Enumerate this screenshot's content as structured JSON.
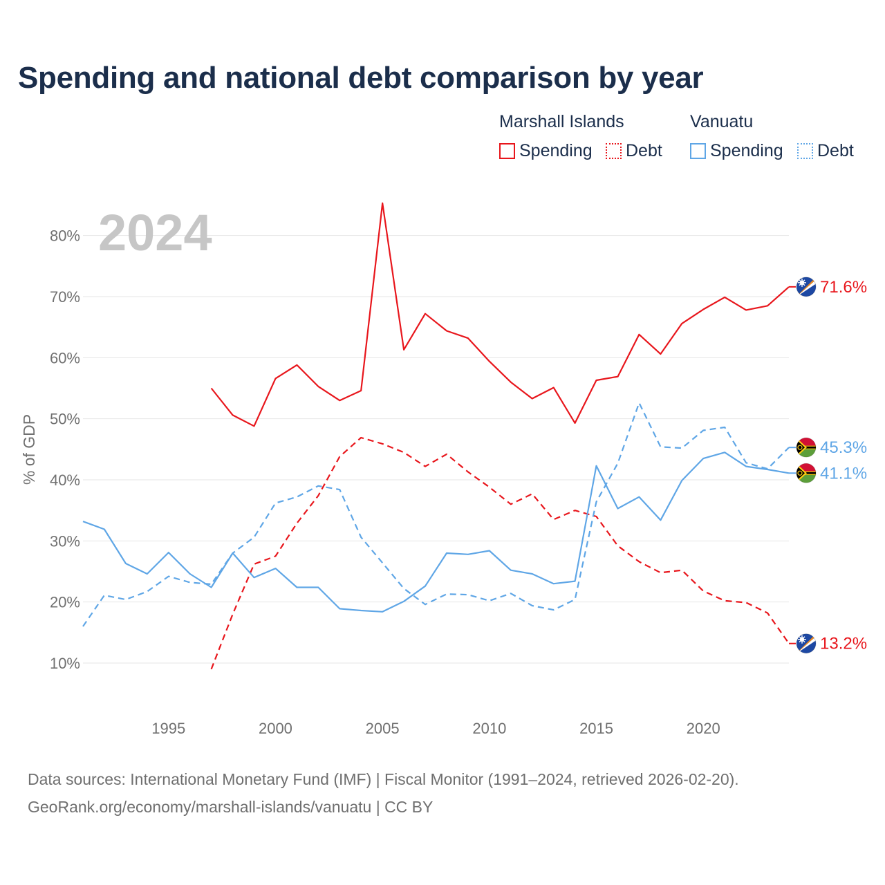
{
  "header": {
    "title": "Spending and national debt comparison by year"
  },
  "legend": {
    "groups": [
      {
        "name": "Marshall Islands",
        "color": "#e8161c",
        "items": [
          {
            "label": "Spending",
            "style": "solid"
          },
          {
            "label": "Debt",
            "style": "dotted"
          }
        ]
      },
      {
        "name": "Vanuatu",
        "color": "#5fa6e6",
        "items": [
          {
            "label": "Spending",
            "style": "solid"
          },
          {
            "label": "Debt",
            "style": "dotted"
          }
        ]
      }
    ]
  },
  "year_watermark": "2024",
  "footer": {
    "sources_line1": "Data sources: International Monetary Fund (IMF) | Fiscal Monitor (1991–2024, retrieved 2026-02-20).",
    "sources_line2": "GeoRank.org/economy/marshall-islands/vanuatu | CC BY"
  },
  "chart_data": {
    "type": "line",
    "title": "Spending and national debt comparison by year",
    "xlabel": "",
    "ylabel": "% of GDP",
    "xlim": [
      1991,
      2024
    ],
    "ylim": [
      4,
      88
    ],
    "grid": true,
    "x_ticks": [
      1995,
      2000,
      2005,
      2010,
      2015,
      2020
    ],
    "y_ticks": [
      {
        "value": 10,
        "label": "10%"
      },
      {
        "value": 20,
        "label": "20%"
      },
      {
        "value": 30,
        "label": "30%"
      },
      {
        "value": 40,
        "label": "40%"
      },
      {
        "value": 50,
        "label": "50%"
      },
      {
        "value": 60,
        "label": "60%"
      },
      {
        "value": 70,
        "label": "70%"
      },
      {
        "value": 80,
        "label": "80%"
      }
    ],
    "series": [
      {
        "name": "Marshall Islands Spending",
        "country": "Marshall Islands",
        "metric": "Spending",
        "color": "#e8161c",
        "dash": "solid",
        "flag": "marshall-islands",
        "end_label": "71.6%",
        "points": [
          [
            1997,
            55.0
          ],
          [
            1998,
            50.6
          ],
          [
            1999,
            48.8
          ],
          [
            2000,
            56.6
          ],
          [
            2001,
            58.8
          ],
          [
            2002,
            55.3
          ],
          [
            2003,
            53.0
          ],
          [
            2004,
            54.6
          ],
          [
            2005,
            85.3
          ],
          [
            2006,
            61.3
          ],
          [
            2007,
            67.2
          ],
          [
            2008,
            64.4
          ],
          [
            2009,
            63.2
          ],
          [
            2010,
            59.4
          ],
          [
            2011,
            56.0
          ],
          [
            2012,
            53.3
          ],
          [
            2013,
            55.1
          ],
          [
            2014,
            49.3
          ],
          [
            2015,
            56.3
          ],
          [
            2016,
            56.9
          ],
          [
            2017,
            63.8
          ],
          [
            2018,
            60.6
          ],
          [
            2019,
            65.6
          ],
          [
            2020,
            67.9
          ],
          [
            2021,
            69.9
          ],
          [
            2022,
            67.8
          ],
          [
            2023,
            68.5
          ],
          [
            2024,
            71.6
          ]
        ]
      },
      {
        "name": "Marshall Islands Debt",
        "country": "Marshall Islands",
        "metric": "Debt",
        "color": "#e8161c",
        "dash": "dashed",
        "flag": "marshall-islands",
        "end_label": "13.2%",
        "points": [
          [
            1997,
            9.0
          ],
          [
            1998,
            18.0
          ],
          [
            1999,
            26.2
          ],
          [
            2000,
            27.5
          ],
          [
            2001,
            32.9
          ],
          [
            2002,
            37.4
          ],
          [
            2003,
            43.8
          ],
          [
            2004,
            46.9
          ],
          [
            2005,
            45.9
          ],
          [
            2006,
            44.5
          ],
          [
            2007,
            42.2
          ],
          [
            2008,
            44.2
          ],
          [
            2009,
            41.3
          ],
          [
            2010,
            38.8
          ],
          [
            2011,
            36.0
          ],
          [
            2012,
            37.7
          ],
          [
            2013,
            33.5
          ],
          [
            2014,
            35.0
          ],
          [
            2015,
            34.0
          ],
          [
            2016,
            29.2
          ],
          [
            2017,
            26.6
          ],
          [
            2018,
            24.8
          ],
          [
            2019,
            25.2
          ],
          [
            2020,
            21.8
          ],
          [
            2021,
            20.2
          ],
          [
            2022,
            19.9
          ],
          [
            2023,
            18.2
          ],
          [
            2024,
            13.2
          ]
        ]
      },
      {
        "name": "Vanuatu Spending",
        "country": "Vanuatu",
        "metric": "Spending",
        "color": "#5fa6e6",
        "dash": "solid",
        "flag": "vanuatu",
        "end_label": "41.1%",
        "points": [
          [
            1991,
            33.2
          ],
          [
            1992,
            31.9
          ],
          [
            1993,
            26.3
          ],
          [
            1994,
            24.6
          ],
          [
            1995,
            28.1
          ],
          [
            1996,
            24.6
          ],
          [
            1997,
            22.4
          ],
          [
            1998,
            28.0
          ],
          [
            1999,
            24.0
          ],
          [
            2000,
            25.5
          ],
          [
            2001,
            22.4
          ],
          [
            2002,
            22.4
          ],
          [
            2003,
            18.9
          ],
          [
            2004,
            18.6
          ],
          [
            2005,
            18.4
          ],
          [
            2006,
            20.1
          ],
          [
            2007,
            22.6
          ],
          [
            2008,
            28.0
          ],
          [
            2009,
            27.8
          ],
          [
            2010,
            28.4
          ],
          [
            2011,
            25.2
          ],
          [
            2012,
            24.6
          ],
          [
            2013,
            23.0
          ],
          [
            2014,
            23.4
          ],
          [
            2015,
            42.3
          ],
          [
            2016,
            35.3
          ],
          [
            2017,
            37.2
          ],
          [
            2018,
            33.4
          ],
          [
            2019,
            39.9
          ],
          [
            2020,
            43.5
          ],
          [
            2021,
            44.5
          ],
          [
            2022,
            42.2
          ],
          [
            2023,
            41.7
          ],
          [
            2024,
            41.1
          ]
        ]
      },
      {
        "name": "Vanuatu Debt",
        "country": "Vanuatu",
        "metric": "Debt",
        "color": "#5fa6e6",
        "dash": "dashed",
        "flag": "vanuatu",
        "end_label": "45.3%",
        "points": [
          [
            1991,
            16.0
          ],
          [
            1992,
            21.1
          ],
          [
            1993,
            20.4
          ],
          [
            1994,
            21.7
          ],
          [
            1995,
            24.2
          ],
          [
            1996,
            23.2
          ],
          [
            1997,
            22.9
          ],
          [
            1998,
            28.0
          ],
          [
            1999,
            30.6
          ],
          [
            2000,
            36.2
          ],
          [
            2001,
            37.2
          ],
          [
            2002,
            39.0
          ],
          [
            2003,
            38.4
          ],
          [
            2004,
            30.6
          ],
          [
            2005,
            26.4
          ],
          [
            2006,
            22.2
          ],
          [
            2007,
            19.6
          ],
          [
            2008,
            21.3
          ],
          [
            2009,
            21.2
          ],
          [
            2010,
            20.2
          ],
          [
            2011,
            21.4
          ],
          [
            2012,
            19.4
          ],
          [
            2013,
            18.7
          ],
          [
            2014,
            20.4
          ],
          [
            2015,
            36.4
          ],
          [
            2016,
            42.7
          ],
          [
            2017,
            52.6
          ],
          [
            2018,
            45.4
          ],
          [
            2019,
            45.2
          ],
          [
            2020,
            48.1
          ],
          [
            2021,
            48.6
          ],
          [
            2022,
            42.8
          ],
          [
            2023,
            41.8
          ],
          [
            2024,
            45.3
          ]
        ]
      }
    ]
  }
}
